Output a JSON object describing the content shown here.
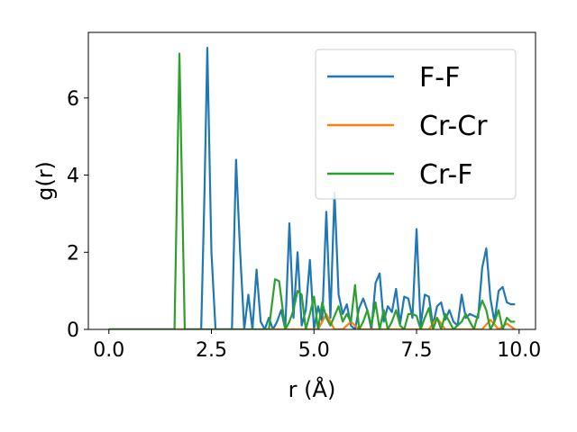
{
  "chart_data": {
    "type": "line",
    "xlabel": "r (Å)",
    "ylabel": "g(r)",
    "xlim": [
      -0.5,
      10.4
    ],
    "ylim": [
      0,
      7.7
    ],
    "xticks": [
      0.0,
      2.5,
      5.0,
      7.5,
      10.0
    ],
    "xtick_labels": [
      "0.0",
      "2.5",
      "5.0",
      "7.5",
      "10.0"
    ],
    "yticks": [
      0,
      2,
      4,
      6
    ],
    "ytick_labels": [
      "0",
      "2",
      "4",
      "6"
    ],
    "grid": false,
    "legend_position": "top-right",
    "series": [
      {
        "name": "F-F",
        "color": "#1f77b4",
        "x": [
          0.0,
          2.25,
          2.33,
          2.4,
          2.5,
          2.6,
          3.0,
          3.1,
          3.2,
          3.3,
          3.4,
          3.5,
          3.6,
          3.7,
          3.8,
          3.9,
          4.0,
          4.1,
          4.2,
          4.3,
          4.4,
          4.5,
          4.6,
          4.7,
          4.8,
          4.9,
          5.0,
          5.1,
          5.2,
          5.3,
          5.4,
          5.5,
          5.6,
          5.7,
          5.8,
          5.9,
          6.0,
          6.1,
          6.2,
          6.3,
          6.4,
          6.5,
          6.6,
          6.7,
          6.8,
          6.9,
          7.0,
          7.1,
          7.2,
          7.3,
          7.4,
          7.5,
          7.6,
          7.7,
          7.8,
          7.9,
          8.0,
          8.1,
          8.2,
          8.3,
          8.4,
          8.5,
          8.6,
          8.7,
          8.8,
          8.9,
          9.0,
          9.1,
          9.2,
          9.3,
          9.4,
          9.5,
          9.6,
          9.7,
          9.8,
          9.9
        ],
        "y": [
          0.0,
          0.0,
          3.5,
          7.3,
          2.0,
          0.0,
          0.0,
          4.4,
          2.0,
          0.0,
          0.9,
          0.0,
          1.55,
          0.2,
          0.0,
          0.3,
          0.0,
          0.2,
          0.5,
          0.0,
          2.75,
          0.3,
          2.0,
          0.1,
          0.5,
          1.8,
          0.0,
          0.6,
          0.2,
          3.05,
          0.3,
          3.55,
          0.9,
          0.4,
          0.65,
          0.1,
          0.0,
          0.55,
          0.8,
          0.5,
          0.0,
          1.2,
          1.45,
          0.2,
          0.6,
          0.45,
          1.05,
          0.15,
          0.85,
          0.8,
          0.3,
          2.6,
          0.1,
          0.9,
          0.85,
          0.1,
          0.6,
          0.7,
          0.25,
          0.5,
          0.2,
          0.1,
          0.9,
          0.3,
          0.4,
          0.35,
          0.3,
          1.6,
          2.1,
          0.8,
          0.2,
          1.0,
          1.1,
          0.7,
          0.65,
          0.65
        ]
      },
      {
        "name": "Cr-Cr",
        "color": "#ff7f0e",
        "x": [
          0.0,
          5.1,
          5.3,
          5.5,
          5.7,
          5.9,
          6.1,
          7.8,
          8.0,
          8.2,
          9.1,
          9.3,
          9.5,
          9.7,
          9.9
        ],
        "y": [
          0.0,
          0.0,
          0.4,
          0.0,
          0.0,
          0.2,
          0.0,
          0.0,
          0.3,
          0.0,
          0.0,
          0.25,
          0.0,
          0.15,
          0.0
        ]
      },
      {
        "name": "Cr-F",
        "color": "#2ca02c",
        "x": [
          0.0,
          1.6,
          1.72,
          1.85,
          2.0,
          3.9,
          4.05,
          4.15,
          4.3,
          4.4,
          4.5,
          4.6,
          4.7,
          4.8,
          4.9,
          5.0,
          5.1,
          5.2,
          5.3,
          5.4,
          5.5,
          5.6,
          5.7,
          5.8,
          5.9,
          6.0,
          6.1,
          6.2,
          6.3,
          6.4,
          6.5,
          6.6,
          6.7,
          6.8,
          6.9,
          7.0,
          7.1,
          7.2,
          7.3,
          7.4,
          7.5,
          7.6,
          7.7,
          7.8,
          7.9,
          8.0,
          8.1,
          8.2,
          8.3,
          8.4,
          8.5,
          8.6,
          8.7,
          8.8,
          8.9,
          9.0,
          9.1,
          9.2,
          9.3,
          9.4,
          9.5,
          9.6,
          9.7,
          9.8,
          9.9
        ],
        "y": [
          0.0,
          0.0,
          7.15,
          0.0,
          0.0,
          0.0,
          1.3,
          1.25,
          0.0,
          0.2,
          0.5,
          1.0,
          0.9,
          0.0,
          0.4,
          0.85,
          0.0,
          0.7,
          0.3,
          0.1,
          0.35,
          0.6,
          0.2,
          0.4,
          0.2,
          1.15,
          0.0,
          0.2,
          0.5,
          0.1,
          0.7,
          0.0,
          0.5,
          0.0,
          0.2,
          0.5,
          0.1,
          0.0,
          0.4,
          0.4,
          0.35,
          0.0,
          0.3,
          0.55,
          0.0,
          0.3,
          0.0,
          0.4,
          0.2,
          0.0,
          0.1,
          0.2,
          0.4,
          0.2,
          0.0,
          0.4,
          0.75,
          0.5,
          0.0,
          0.2,
          0.5,
          0.0,
          0.3,
          0.2,
          0.2
        ]
      }
    ]
  }
}
